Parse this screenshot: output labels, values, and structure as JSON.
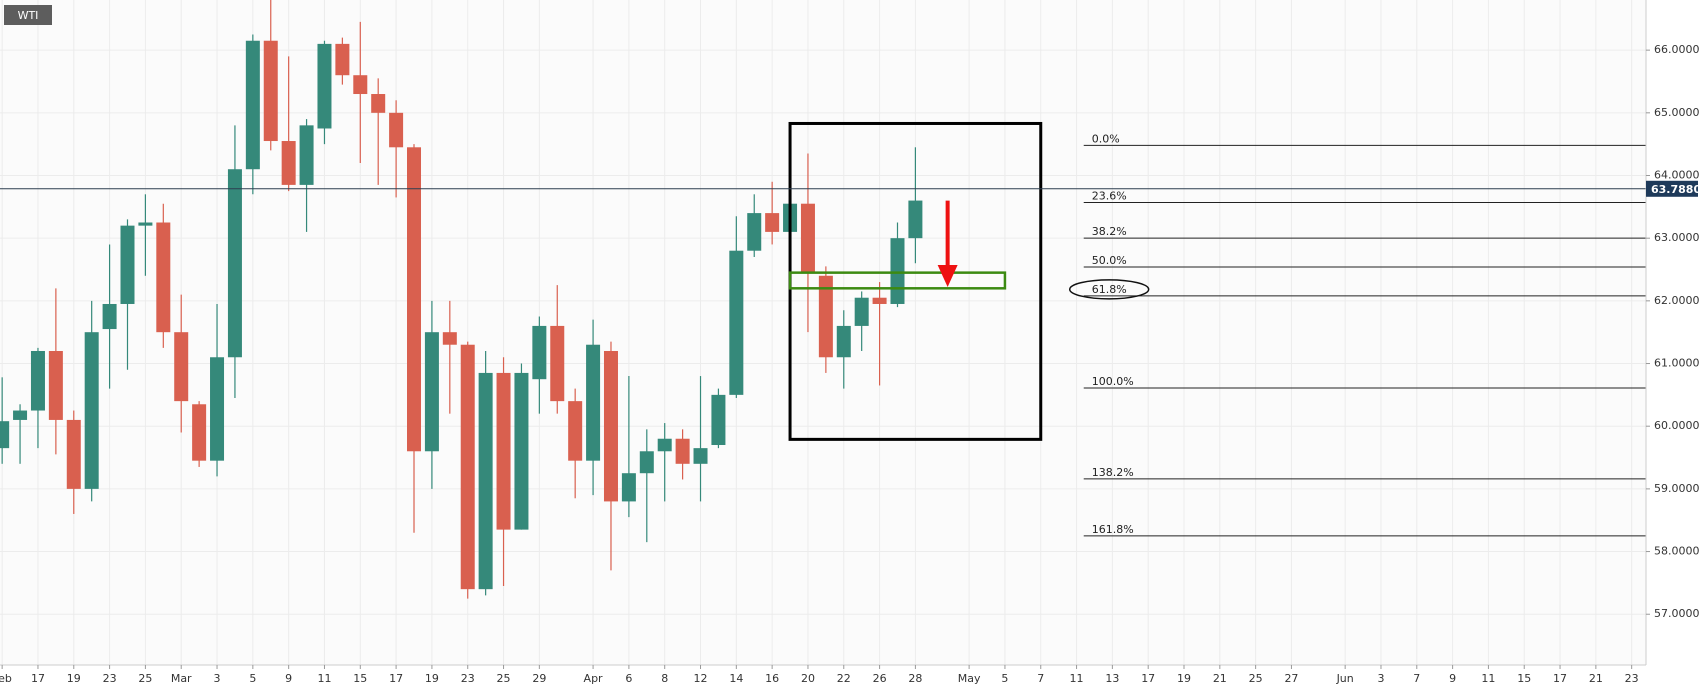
{
  "chart_data": {
    "type": "candlestick",
    "symbol": "WTI",
    "up_color": "#35897a",
    "down_color": "#d9604f",
    "candles": [
      [
        59.65,
        60.78,
        59.4,
        60.08
      ],
      [
        60.1,
        60.35,
        59.4,
        60.25
      ],
      [
        60.25,
        61.25,
        59.65,
        61.2
      ],
      [
        61.2,
        62.2,
        59.55,
        60.1
      ],
      [
        60.1,
        60.25,
        58.6,
        59.0
      ],
      [
        59.0,
        62.0,
        58.8,
        61.5
      ],
      [
        61.55,
        62.9,
        60.6,
        61.95
      ],
      [
        61.95,
        63.3,
        60.9,
        63.2
      ],
      [
        63.2,
        63.7,
        62.4,
        63.25
      ],
      [
        63.25,
        63.55,
        61.25,
        61.5
      ],
      [
        61.5,
        62.1,
        59.9,
        60.4
      ],
      [
        60.35,
        60.4,
        59.35,
        59.45
      ],
      [
        59.45,
        61.95,
        59.2,
        61.1
      ],
      [
        61.1,
        64.8,
        60.45,
        64.1
      ],
      [
        64.1,
        66.25,
        63.7,
        66.15
      ],
      [
        66.15,
        66.8,
        64.4,
        64.55
      ],
      [
        64.55,
        65.9,
        63.75,
        63.85
      ],
      [
        63.85,
        64.9,
        63.1,
        64.8
      ],
      [
        64.75,
        66.15,
        64.5,
        66.1
      ],
      [
        66.1,
        66.2,
        65.45,
        65.6
      ],
      [
        65.6,
        66.45,
        64.2,
        65.3
      ],
      [
        65.3,
        65.55,
        63.85,
        65.0
      ],
      [
        65.0,
        65.2,
        63.65,
        64.45
      ],
      [
        64.45,
        64.5,
        58.3,
        59.6
      ],
      [
        59.6,
        62.0,
        59.0,
        61.5
      ],
      [
        61.5,
        62.0,
        60.2,
        61.3
      ],
      [
        61.3,
        61.35,
        57.25,
        57.4
      ],
      [
        57.4,
        61.2,
        57.3,
        60.85
      ],
      [
        60.85,
        61.1,
        57.45,
        58.35
      ],
      [
        58.35,
        61.0,
        58.35,
        60.85
      ],
      [
        60.75,
        61.75,
        60.2,
        61.6
      ],
      [
        61.6,
        62.25,
        60.2,
        60.4
      ],
      [
        60.4,
        60.6,
        58.85,
        59.45
      ],
      [
        59.45,
        61.7,
        58.9,
        61.3
      ],
      [
        61.2,
        61.35,
        57.7,
        58.8
      ],
      [
        58.8,
        60.8,
        58.55,
        59.25
      ],
      [
        59.25,
        59.95,
        58.15,
        59.6
      ],
      [
        59.6,
        60.05,
        58.8,
        59.8
      ],
      [
        59.8,
        59.95,
        59.15,
        59.4
      ],
      [
        59.4,
        60.8,
        58.8,
        59.65
      ],
      [
        59.7,
        60.6,
        59.65,
        60.5
      ],
      [
        60.5,
        63.35,
        60.45,
        62.8
      ],
      [
        62.8,
        63.7,
        62.7,
        63.4
      ],
      [
        63.4,
        63.9,
        62.9,
        63.1
      ],
      [
        63.1,
        63.6,
        63.1,
        63.55
      ],
      [
        63.55,
        64.35,
        61.5,
        62.45
      ],
      [
        62.4,
        62.55,
        60.85,
        61.1
      ],
      [
        61.1,
        61.85,
        60.6,
        61.6
      ],
      [
        61.6,
        62.15,
        61.2,
        62.05
      ],
      [
        62.05,
        62.3,
        60.65,
        61.95
      ],
      [
        61.95,
        63.25,
        61.9,
        63.0
      ],
      [
        63.0,
        64.45,
        62.6,
        63.6
      ]
    ],
    "last_price": {
      "value": 63.788,
      "label": "63.7880"
    },
    "xlim": [
      -0.12,
      91.8
    ],
    "ylim": [
      56.19,
      66.8
    ],
    "xticks": [
      {
        "value": 0,
        "label": "Feb"
      },
      {
        "value": 2,
        "label": "17"
      },
      {
        "value": 4,
        "label": "19"
      },
      {
        "value": 6,
        "label": "23"
      },
      {
        "value": 8,
        "label": "25"
      },
      {
        "value": 10,
        "label": "Mar"
      },
      {
        "value": 12,
        "label": "3"
      },
      {
        "value": 14,
        "label": "5"
      },
      {
        "value": 16,
        "label": "9"
      },
      {
        "value": 18,
        "label": "11"
      },
      {
        "value": 20,
        "label": "15"
      },
      {
        "value": 22,
        "label": "17"
      },
      {
        "value": 24,
        "label": "19"
      },
      {
        "value": 26,
        "label": "23"
      },
      {
        "value": 28,
        "label": "25"
      },
      {
        "value": 30,
        "label": "29"
      },
      {
        "value": 33,
        "label": "Apr"
      },
      {
        "value": 35,
        "label": "6"
      },
      {
        "value": 37,
        "label": "8"
      },
      {
        "value": 39,
        "label": "12"
      },
      {
        "value": 41,
        "label": "14"
      },
      {
        "value": 43,
        "label": "16"
      },
      {
        "value": 45,
        "label": "20"
      },
      {
        "value": 47,
        "label": "22"
      },
      {
        "value": 49,
        "label": "26"
      },
      {
        "value": 51,
        "label": "28"
      },
      {
        "value": 54,
        "label": "May"
      },
      {
        "value": 56,
        "label": "5"
      },
      {
        "value": 58,
        "label": "7"
      },
      {
        "value": 60,
        "label": "11"
      },
      {
        "value": 62,
        "label": "13"
      },
      {
        "value": 64,
        "label": "17"
      },
      {
        "value": 66,
        "label": "19"
      },
      {
        "value": 68,
        "label": "21"
      },
      {
        "value": 70,
        "label": "25"
      },
      {
        "value": 72,
        "label": "27"
      },
      {
        "value": 75,
        "label": "Jun"
      },
      {
        "value": 77,
        "label": "3"
      },
      {
        "value": 79,
        "label": "7"
      },
      {
        "value": 81,
        "label": "9"
      },
      {
        "value": 83,
        "label": "11"
      },
      {
        "value": 85,
        "label": "15"
      },
      {
        "value": 87,
        "label": "17"
      },
      {
        "value": 89,
        "label": "21"
      },
      {
        "value": 91,
        "label": "23"
      }
    ],
    "yticks": [
      {
        "value": 57,
        "label": "57.0000"
      },
      {
        "value": 58,
        "label": "58.0000"
      },
      {
        "value": 59,
        "label": "59.0000"
      },
      {
        "value": 60,
        "label": "60.0000"
      },
      {
        "value": 61,
        "label": "61.0000"
      },
      {
        "value": 62,
        "label": "62.0000"
      },
      {
        "value": 63,
        "label": "63.0000"
      },
      {
        "value": 64,
        "label": "64.0000"
      },
      {
        "value": 65,
        "label": "65.0000"
      },
      {
        "value": 66,
        "label": "66.0000"
      }
    ],
    "grid": true,
    "fib_start": 60.4,
    "fib_levels": [
      {
        "label": "0.0%",
        "price": 64.48
      },
      {
        "label": "23.6%",
        "price": 63.57
      },
      {
        "label": "38.2%",
        "price": 63.0
      },
      {
        "label": "50.0%",
        "price": 62.54
      },
      {
        "label": "61.8%",
        "price": 62.08
      },
      {
        "label": "100.0%",
        "price": 60.61
      },
      {
        "label": "138.2%",
        "price": 59.16
      },
      {
        "label": "161.8%",
        "price": 58.25
      }
    ],
    "highlighted_level": 4,
    "box": {
      "x": [
        44,
        58
      ],
      "y": [
        59.79,
        64.83
      ]
    },
    "zone": {
      "x": [
        44,
        56
      ],
      "y": [
        62.2,
        62.45
      ]
    },
    "arrow": {
      "x": 52.8,
      "y": [
        63.6,
        62.22
      ]
    }
  }
}
